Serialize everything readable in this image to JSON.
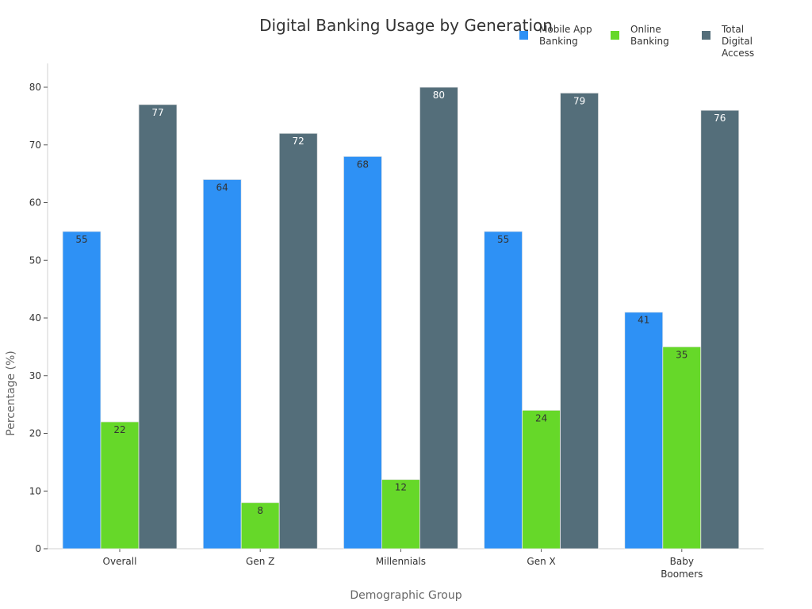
{
  "chart_data": {
    "type": "bar",
    "title": "Digital Banking Usage by Generation",
    "xlabel": "Demographic Group",
    "ylabel": "Percentage (%)",
    "ylim": [
      0,
      80
    ],
    "yticks": [
      0,
      10,
      20,
      30,
      40,
      50,
      60,
      70,
      80
    ],
    "grid": false,
    "legend_position": "top-right",
    "categories": [
      "Overall",
      "Gen Z",
      "Millennials",
      "Gen X",
      "Baby\nBoomers"
    ],
    "series": [
      {
        "name": "Mobile App Banking",
        "legend_label": "Mobile App\nBanking",
        "color": "#2e91f5",
        "label_color": "#333333",
        "values": [
          55,
          64,
          68,
          55,
          41
        ]
      },
      {
        "name": "Online Banking",
        "legend_label": "Online\nBanking",
        "color": "#66d829",
        "label_color": "#333333",
        "values": [
          22,
          8,
          12,
          24,
          35
        ]
      },
      {
        "name": "Total Digital Access",
        "legend_label": "Total Digital\nAccess",
        "color": "#546e7a",
        "label_color": "#ffffff",
        "values": [
          77,
          72,
          80,
          79,
          76
        ]
      }
    ]
  }
}
